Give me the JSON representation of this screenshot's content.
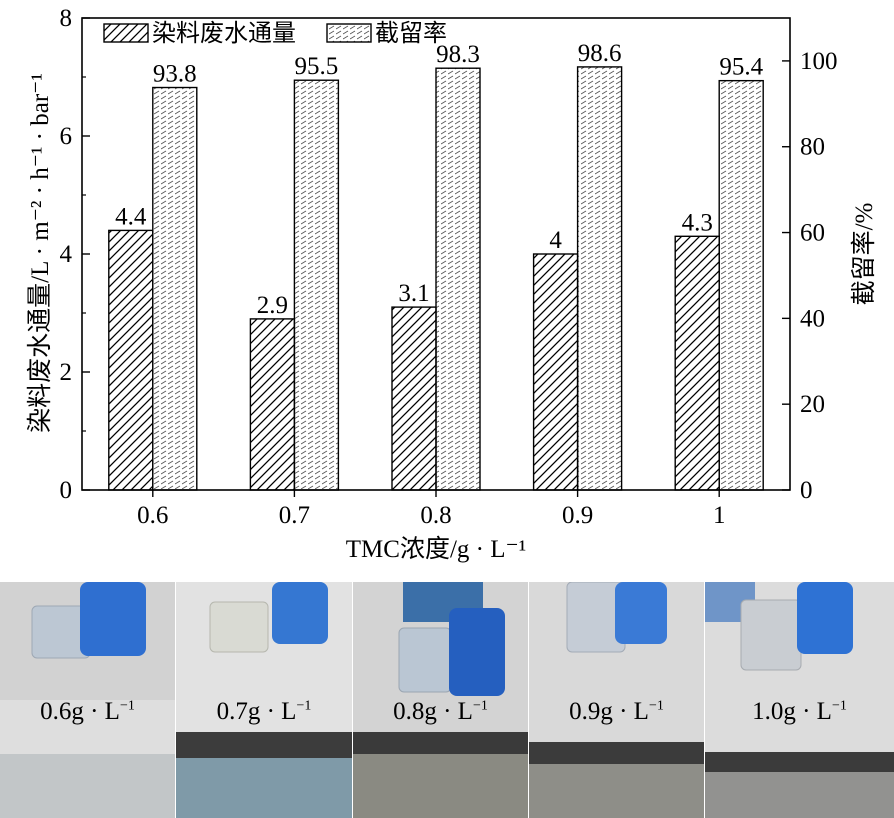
{
  "chart_data": {
    "type": "bar",
    "categories": [
      "0.6",
      "0.7",
      "0.8",
      "0.9",
      "1"
    ],
    "xlabel": "TMC浓度/g · L⁻¹",
    "y_left": {
      "label": "染料废水通量/L · m⁻² · h⁻¹ · bar⁻¹",
      "lim": [
        0,
        8
      ],
      "ticks": [
        "0",
        "2",
        "4",
        "6",
        "8"
      ]
    },
    "y_right": {
      "label": "截留率/%",
      "lim": [
        0,
        110
      ],
      "ticks": [
        "0",
        "20",
        "40",
        "60",
        "80",
        "100"
      ]
    },
    "series": [
      {
        "name": "染料废水通量",
        "axis": "left",
        "pattern": "diagonal-hatch",
        "values": [
          4.4,
          2.9,
          3.1,
          4.0,
          4.3
        ],
        "labels": [
          "4.4",
          "2.9",
          "3.1",
          "4",
          "4.3"
        ]
      },
      {
        "name": "截留率",
        "axis": "right",
        "pattern": "dense-dash-hatch",
        "values": [
          93.8,
          95.5,
          98.3,
          98.6,
          95.4
        ],
        "labels": [
          "93.8",
          "95.5",
          "98.3",
          "98.6",
          "95.4"
        ]
      }
    ],
    "legend": "top-left",
    "grid": false
  },
  "photos": [
    {
      "label": "0.6g · L",
      "sup": "−1"
    },
    {
      "label": "0.7g · L",
      "sup": "−1"
    },
    {
      "label": "0.8g · L",
      "sup": "−1"
    },
    {
      "label": "0.9g · L",
      "sup": "−1"
    },
    {
      "label": "1.0g · L",
      "sup": "−1"
    }
  ]
}
